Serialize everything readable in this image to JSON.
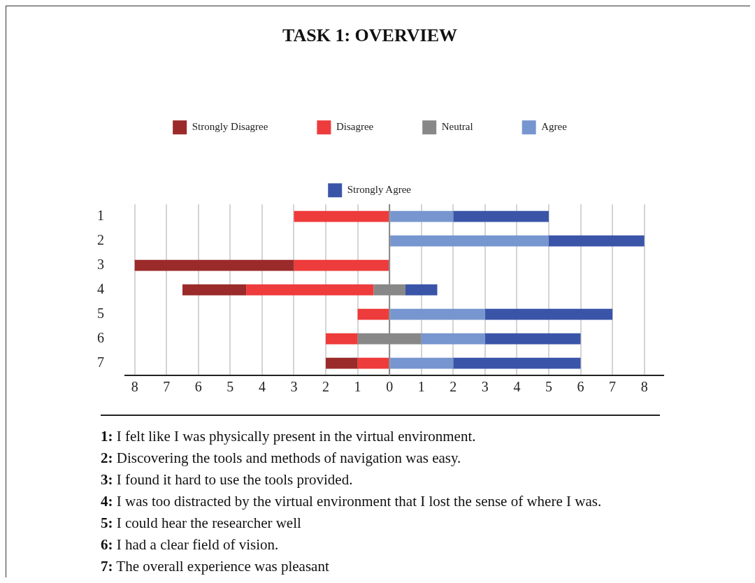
{
  "chart_data": {
    "type": "bar",
    "orientation": "horizontal",
    "title": "TASK 1: OVERVIEW",
    "categories": [
      "1",
      "2",
      "3",
      "4",
      "5",
      "6",
      "7"
    ],
    "series": [
      {
        "name": "Strongly Disagree",
        "color": "#9b2a2a",
        "values": [
          null,
          null,
          5,
          2,
          null,
          null,
          1
        ],
        "base": [
          null,
          null,
          -8,
          -6.5,
          null,
          null,
          -2
        ]
      },
      {
        "name": "Disagree",
        "color": "#ee3b3b",
        "values": [
          3,
          null,
          3,
          4,
          1,
          1,
          1
        ],
        "base": [
          -3,
          null,
          -3,
          -4.5,
          -1,
          -2,
          -1
        ]
      },
      {
        "name": "Neutral",
        "color": "#888888",
        "values": [
          null,
          null,
          null,
          1,
          null,
          2,
          null
        ],
        "base": [
          null,
          null,
          null,
          -0.5,
          null,
          -1,
          null
        ]
      },
      {
        "name": "Agree",
        "color": "#7796cf",
        "values": [
          2,
          5,
          null,
          null,
          3,
          2,
          2
        ],
        "base": [
          0,
          0,
          null,
          null,
          0,
          1,
          0
        ]
      },
      {
        "name": "Strongly Agree",
        "color": "#3a54a8",
        "values": [
          3,
          3,
          null,
          1,
          4,
          3,
          4
        ],
        "base": [
          2,
          5,
          null,
          0.5,
          3,
          3,
          2
        ]
      }
    ],
    "xlim": [
      -8.3,
      8.6
    ],
    "xticks": [
      {
        "value": -8,
        "label": "8"
      },
      {
        "value": -7,
        "label": "7"
      },
      {
        "value": -6,
        "label": "6"
      },
      {
        "value": -5,
        "label": "5"
      },
      {
        "value": -4,
        "label": "4"
      },
      {
        "value": -3,
        "label": "3"
      },
      {
        "value": -2,
        "label": "2"
      },
      {
        "value": -1,
        "label": "1"
      },
      0,
      1,
      2,
      3,
      4,
      5,
      6,
      7,
      8
    ],
    "grid": "x",
    "legend": "top",
    "ref_lines": [
      {
        "axis": "x",
        "value": 0,
        "color": "#888888"
      }
    ],
    "annotations": [
      "1: I felt like I was physically present in the virtual environment.",
      "2: Discovering the tools and methods of navigation was easy.",
      "3: I found it hard to use the tools provided.",
      "4: I was too distracted by the virtual environment that I lost the sense of where I was.",
      "5: I could hear the researcher well",
      "6: I had a clear field of vision.",
      "7: The overall experience was pleasant"
    ]
  }
}
